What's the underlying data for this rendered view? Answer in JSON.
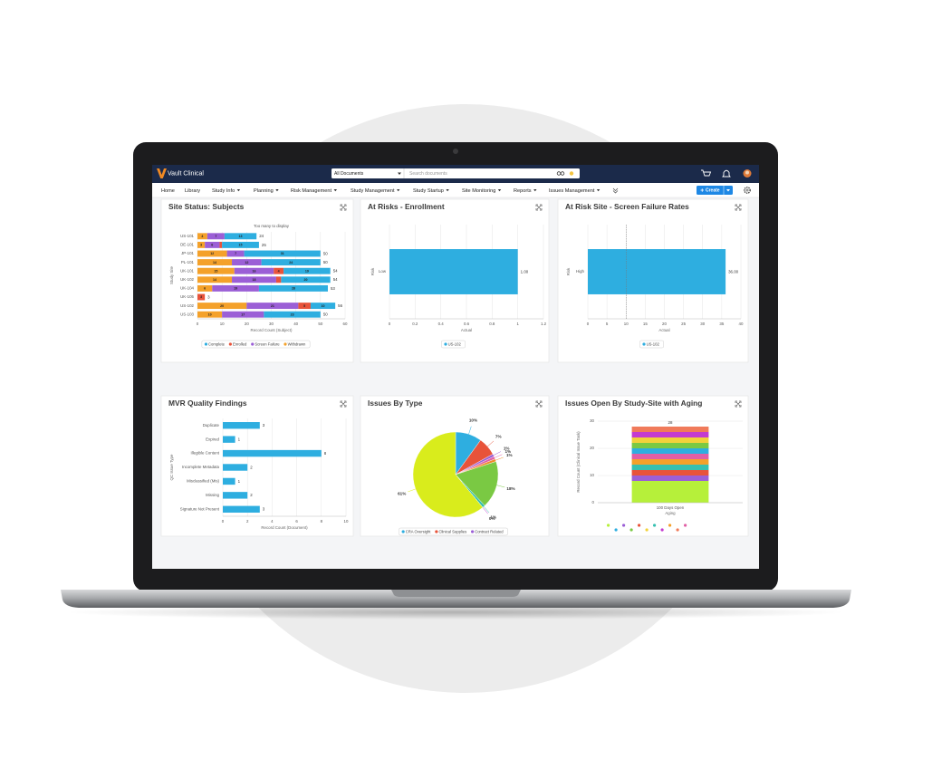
{
  "header": {
    "logo": "Vault Clinical",
    "search_scope": "All Documents",
    "search_placeholder": "Search documents"
  },
  "nav": {
    "items": [
      "Home",
      "Library",
      "Study Info",
      "Planning",
      "Risk Management",
      "Study Management",
      "Study Startup",
      "Site Monitoring",
      "Reports",
      "Issues Management"
    ],
    "create": "Create"
  },
  "chart_data": [
    {
      "type": "bar",
      "orientation": "horizontal",
      "stacked": true,
      "title": "Site Status: Subjects",
      "subtitle": "Too many to display",
      "categories": [
        "US-101",
        "DE-101",
        "JP-101",
        "PL-101",
        "UK-101",
        "UK-102",
        "UK-104",
        "UK-105",
        "US-102",
        "US-103"
      ],
      "series": [
        {
          "name": "Withdrawn",
          "color": "#f4a12a",
          "values": [
            4,
            3,
            12,
            14,
            15,
            14,
            6,
            0,
            20,
            10
          ]
        },
        {
          "name": "Screen Failure",
          "color": "#9b5fd6",
          "values": [
            7,
            6,
            7,
            12,
            16,
            18,
            19,
            0,
            21,
            17
          ]
        },
        {
          "name": "Enrolled",
          "color": "#e8533a",
          "values": [
            0,
            1,
            0,
            0,
            4,
            2,
            0,
            3,
            5,
            0
          ]
        },
        {
          "name": "Complete",
          "color": "#2eaee0",
          "values": [
            13,
            15,
            31,
            24,
            19,
            20,
            28,
            0,
            10,
            23
          ]
        }
      ],
      "total_labels": [
        "24",
        "25",
        "50",
        "50",
        "54",
        "54",
        "53",
        "3",
        "56",
        "50"
      ],
      "xlim": [
        0,
        60
      ],
      "xticks": [
        0,
        10,
        20,
        30,
        40,
        50,
        60
      ],
      "xlabel": "Record Count (Subject)",
      "ylabel": "Study Site",
      "grid": true
    },
    {
      "type": "bar",
      "orientation": "horizontal",
      "title": "At Risks - Enrollment",
      "categories": [
        "Low"
      ],
      "values": [
        1.0
      ],
      "value_labels": [
        "1.00"
      ],
      "color": "#2eaee0",
      "legend": [
        "US-102"
      ],
      "xlim": [
        0,
        1.2
      ],
      "xticks": [
        0,
        0.2,
        0.4,
        0.6,
        0.8,
        1,
        1.2
      ],
      "xlabel": "Actual",
      "ylabel": "Risk",
      "grid": true
    },
    {
      "type": "bar",
      "orientation": "horizontal",
      "title": "At Risk Site - Screen Failure Rates",
      "categories": [
        "High"
      ],
      "values": [
        36.0
      ],
      "value_labels": [
        "36.00"
      ],
      "color": "#2eaee0",
      "legend": [
        "US-102"
      ],
      "reference_line": 10,
      "xlim": [
        0,
        40
      ],
      "xticks": [
        0,
        5,
        10,
        15,
        20,
        25,
        30,
        35,
        40
      ],
      "xlabel": "Actual",
      "ylabel": "Risk",
      "grid": true
    },
    {
      "type": "bar",
      "orientation": "horizontal",
      "title": "MVR Quality Findings",
      "categories": [
        "Duplicate",
        "Expired",
        "Illegible Content",
        "Incomplete Metadata",
        "Misclassified (Mis)",
        "Missing",
        "Signature Not Present"
      ],
      "values": [
        3,
        1,
        8,
        2,
        1,
        2,
        3
      ],
      "color": "#2eaee0",
      "xlim": [
        0,
        10
      ],
      "xticks": [
        0,
        2,
        4,
        6,
        8,
        10
      ],
      "xlabel": "Record Count (Document)",
      "ylabel": "QC Issue Type",
      "grid": true
    },
    {
      "type": "pie",
      "title": "Issues By Type",
      "categories": [
        "CRA Oversight",
        "Clinical Supplies",
        "Contract Related",
        null,
        null,
        null,
        null,
        null,
        null
      ],
      "values": [
        10,
        7,
        1,
        1,
        1,
        18,
        1,
        0,
        61
      ],
      "value_labels": [
        "10%",
        "7%",
        "1%",
        "1%",
        "1%",
        "18%",
        "1%",
        "0%",
        "61%"
      ],
      "colors": [
        "#2eaee0",
        "#e8533a",
        "#9b5fd6",
        "#e05fa5",
        "#f08a2a",
        "#7ac943",
        "#36c0b0",
        "#c43bd0",
        "#d9ec1c"
      ]
    },
    {
      "type": "bar",
      "orientation": "vertical",
      "stacked": true,
      "title": "Issues Open By Study-Site with Aging",
      "categories": [
        "100 Days Open"
      ],
      "series": [
        {
          "name": null,
          "color": "#b6f03a",
          "values": [
            8
          ]
        },
        {
          "name": null,
          "color": "#9b5fd6",
          "values": [
            2
          ]
        },
        {
          "name": null,
          "color": "#e8533a",
          "values": [
            2
          ]
        },
        {
          "name": null,
          "color": "#36c0b0",
          "values": [
            2
          ]
        },
        {
          "name": null,
          "color": "#f4a12a",
          "values": [
            2
          ]
        },
        {
          "name": null,
          "color": "#e05fa5",
          "values": [
            2
          ]
        },
        {
          "name": null,
          "color": "#2eaee0",
          "values": [
            2
          ]
        },
        {
          "name": null,
          "color": "#7ac943",
          "values": [
            2
          ]
        },
        {
          "name": null,
          "color": "#f2d23a",
          "values": [
            2
          ]
        },
        {
          "name": null,
          "color": "#c43bd0",
          "values": [
            2
          ]
        },
        {
          "name": null,
          "color": "#f07a5a",
          "values": [
            2
          ]
        }
      ],
      "total_labels": [
        "28"
      ],
      "ylim": [
        0,
        30
      ],
      "yticks": [
        0,
        10,
        20,
        30
      ],
      "xlabel": "Aging",
      "ylabel": "Record Count (Clinical Issue Task)",
      "grid": true
    }
  ]
}
